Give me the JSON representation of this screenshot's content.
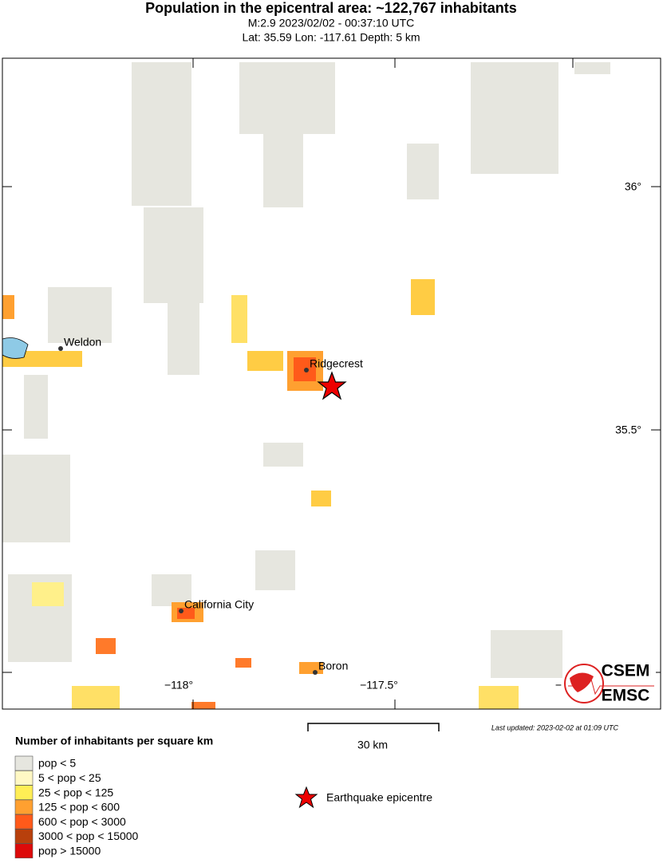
{
  "header": {
    "title": "Population in the epicentral area: ~122,767 inhabitants",
    "line1": "M:2.9 2023/02/02 - 00:37:10 UTC",
    "line2": "Lat: 35.59 Lon: -117.61 Depth: 5 km"
  },
  "map": {
    "lat_labels": [
      "36°",
      "35.5°"
    ],
    "lon_labels": [
      "−118°",
      "−117.5°",
      "−"
    ],
    "places": [
      "Weldon",
      "Ridgecrest",
      "California City",
      "Boron"
    ]
  },
  "scale_bar": "30 km",
  "last_updated": "Last updated: 2023-02-02 at 01:09 UTC",
  "legend": {
    "title": "Number of inhabitants per square km",
    "items": [
      "pop < 5",
      "5 < pop < 25",
      "25 < pop < 125",
      "125 < pop < 600",
      "600 < pop < 3000",
      "3000 < pop < 15000",
      "pop > 15000"
    ],
    "epicentre": "Earthquake epicentre"
  },
  "logo": [
    "CSEM",
    "EMSC"
  ]
}
